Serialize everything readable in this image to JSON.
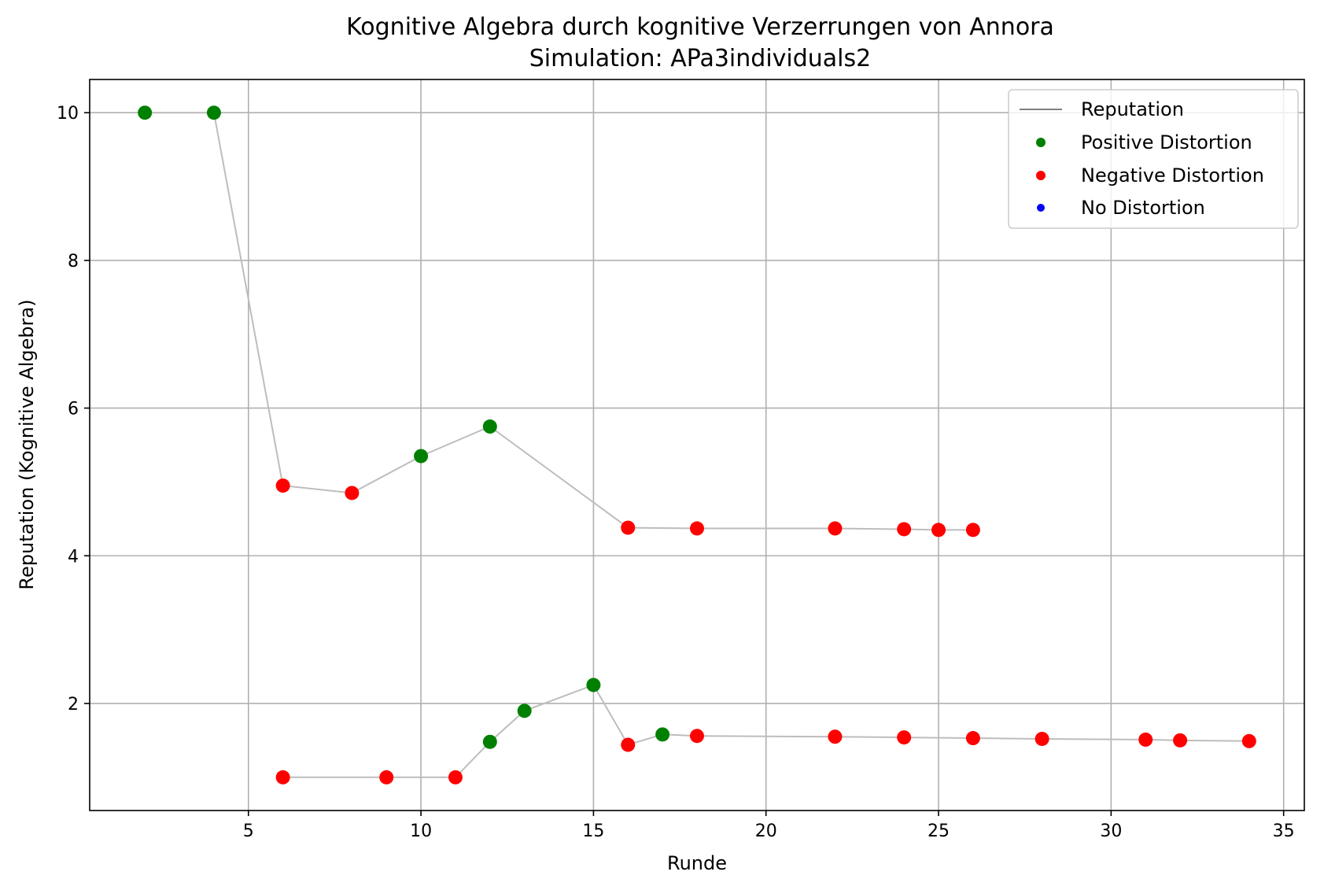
{
  "chart_data": {
    "type": "line",
    "title": "Kognitive Algebra durch kognitive Verzerrungen von Annora",
    "subtitle": "Simulation: APa3individuals2",
    "xlabel": "Runde",
    "ylabel": "Reputation (Kognitive Algebra)",
    "xlim": [
      0.4,
      35.6
    ],
    "ylim": [
      0.55,
      10.45
    ],
    "xticks": [
      5,
      10,
      15,
      20,
      25,
      30,
      35
    ],
    "yticks": [
      2,
      4,
      6,
      8,
      10
    ],
    "grid": true,
    "legend_position": "top-right",
    "legend": [
      {
        "label": "Reputation",
        "kind": "line",
        "color": "#808080"
      },
      {
        "label": "Positive Distortion",
        "kind": "marker",
        "color": "#008000"
      },
      {
        "label": "Negative Distortion",
        "kind": "marker",
        "color": "#ff0000"
      },
      {
        "label": "No Distortion",
        "kind": "marker",
        "color": "#0000ff"
      }
    ],
    "colors": {
      "positive": "#008000",
      "negative": "#ff0000",
      "none": "#0000ff",
      "line": "#bdbdbd"
    },
    "series": [
      {
        "points": [
          {
            "x": 2,
            "y": 10.0,
            "d": "positive"
          },
          {
            "x": 4,
            "y": 10.0,
            "d": "positive"
          },
          {
            "x": 6,
            "y": 4.95,
            "d": "negative"
          },
          {
            "x": 8,
            "y": 4.85,
            "d": "negative"
          },
          {
            "x": 10,
            "y": 5.35,
            "d": "positive"
          },
          {
            "x": 12,
            "y": 5.75,
            "d": "positive"
          },
          {
            "x": 16,
            "y": 4.38,
            "d": "negative"
          },
          {
            "x": 18,
            "y": 4.37,
            "d": "negative"
          },
          {
            "x": 22,
            "y": 4.37,
            "d": "negative"
          },
          {
            "x": 24,
            "y": 4.36,
            "d": "negative"
          },
          {
            "x": 25,
            "y": 4.35,
            "d": "negative"
          },
          {
            "x": 26,
            "y": 4.35,
            "d": "negative"
          }
        ]
      },
      {
        "points": [
          {
            "x": 6,
            "y": 1.0,
            "d": "negative"
          },
          {
            "x": 9,
            "y": 1.0,
            "d": "negative"
          },
          {
            "x": 11,
            "y": 1.0,
            "d": "negative"
          },
          {
            "x": 12,
            "y": 1.48,
            "d": "positive"
          },
          {
            "x": 13,
            "y": 1.9,
            "d": "positive"
          },
          {
            "x": 15,
            "y": 2.25,
            "d": "positive"
          },
          {
            "x": 16,
            "y": 1.44,
            "d": "negative"
          },
          {
            "x": 17,
            "y": 1.58,
            "d": "positive"
          },
          {
            "x": 18,
            "y": 1.56,
            "d": "negative"
          },
          {
            "x": 22,
            "y": 1.55,
            "d": "negative"
          },
          {
            "x": 24,
            "y": 1.54,
            "d": "negative"
          },
          {
            "x": 26,
            "y": 1.53,
            "d": "negative"
          },
          {
            "x": 28,
            "y": 1.52,
            "d": "negative"
          },
          {
            "x": 31,
            "y": 1.51,
            "d": "negative"
          },
          {
            "x": 32,
            "y": 1.5,
            "d": "negative"
          },
          {
            "x": 34,
            "y": 1.49,
            "d": "negative"
          }
        ]
      }
    ]
  }
}
